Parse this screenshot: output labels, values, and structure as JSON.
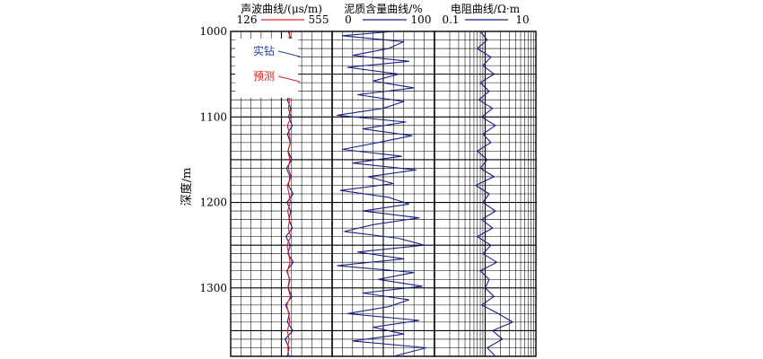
{
  "chart_data": {
    "type": "line",
    "y_axis": {
      "label": "深度/m",
      "range": [
        1000,
        1380
      ],
      "ticks": [
        1000,
        1100,
        1200,
        1300
      ],
      "reversed": true
    },
    "grid": true,
    "tracks": [
      {
        "id": "sonic",
        "title": "声波曲线/(μs/m)",
        "scale_min_label": "126",
        "scale_max_label": "555",
        "range": [
          126,
          555
        ],
        "scale": "linear",
        "legend_color": "#e02020",
        "annotations": [
          {
            "text": "实钻",
            "color": "#2b3fa0"
          },
          {
            "text": "预测",
            "color": "#e02020"
          }
        ],
        "series": [
          {
            "name": "实钻",
            "color": "#1a1f8c",
            "points": [
              [
                1000,
                370
              ],
              [
                1010,
                381
              ],
              [
                1020,
                374
              ],
              [
                1030,
                385
              ],
              [
                1040,
                368
              ],
              [
                1050,
                379
              ],
              [
                1060,
                372
              ],
              [
                1070,
                388
              ],
              [
                1080,
                365
              ],
              [
                1090,
                380
              ],
              [
                1100,
                371
              ],
              [
                1110,
                386
              ],
              [
                1120,
                366
              ],
              [
                1130,
                378
              ],
              [
                1140,
                369
              ],
              [
                1150,
                384
              ],
              [
                1160,
                362
              ],
              [
                1170,
                377
              ],
              [
                1180,
                370
              ],
              [
                1190,
                390
              ],
              [
                1200,
                364
              ],
              [
                1210,
                380
              ],
              [
                1220,
                372
              ],
              [
                1230,
                387
              ],
              [
                1240,
                360
              ],
              [
                1250,
                378
              ],
              [
                1260,
                368
              ],
              [
                1270,
                391
              ],
              [
                1280,
                363
              ],
              [
                1290,
                376
              ],
              [
                1300,
                369
              ],
              [
                1310,
                385
              ],
              [
                1320,
                358
              ],
              [
                1330,
                374
              ],
              [
                1340,
                366
              ],
              [
                1350,
                389
              ],
              [
                1360,
                356
              ],
              [
                1370,
                373
              ],
              [
                1380,
                365
              ]
            ]
          },
          {
            "name": "预测",
            "color": "#e02020",
            "points": [
              [
                1000,
                376
              ],
              [
                1010,
                372
              ],
              [
                1020,
                380
              ],
              [
                1030,
                369
              ],
              [
                1040,
                377
              ],
              [
                1050,
                371
              ],
              [
                1060,
                383
              ],
              [
                1070,
                367
              ],
              [
                1080,
                375
              ],
              [
                1090,
                370
              ],
              [
                1100,
                381
              ],
              [
                1110,
                366
              ],
              [
                1120,
                374
              ],
              [
                1130,
                379
              ],
              [
                1140,
                368
              ],
              [
                1150,
                376
              ],
              [
                1160,
                370
              ],
              [
                1170,
                382
              ],
              [
                1180,
                365
              ],
              [
                1190,
                373
              ],
              [
                1200,
                378
              ],
              [
                1210,
                367
              ],
              [
                1220,
                375
              ],
              [
                1230,
                369
              ],
              [
                1240,
                380
              ],
              [
                1250,
                364
              ],
              [
                1260,
                372
              ],
              [
                1270,
                377
              ],
              [
                1280,
                366
              ],
              [
                1290,
                374
              ],
              [
                1300,
                368
              ],
              [
                1310,
                379
              ],
              [
                1320,
                363
              ],
              [
                1330,
                371
              ],
              [
                1340,
                376
              ],
              [
                1350,
                365
              ],
              [
                1360,
                373
              ],
              [
                1370,
                367
              ],
              [
                1380,
                372
              ]
            ]
          }
        ]
      },
      {
        "id": "shale",
        "title": "泥质含量曲线/%",
        "scale_min_label": "0",
        "scale_max_label": "100",
        "range": [
          0,
          100
        ],
        "scale": "linear",
        "legend_color": "#1a1f8c",
        "series": [
          {
            "name": "",
            "color": "#1a1f8c",
            "points": [
              [
                1000,
                60
              ],
              [
                1005,
                10
              ],
              [
                1012,
                70
              ],
              [
                1020,
                55
              ],
              [
                1028,
                20
              ],
              [
                1035,
                75
              ],
              [
                1042,
                15
              ],
              [
                1050,
                65
              ],
              [
                1058,
                40
              ],
              [
                1066,
                80
              ],
              [
                1074,
                25
              ],
              [
                1082,
                70
              ],
              [
                1090,
                50
              ],
              [
                1098,
                5
              ],
              [
                1106,
                72
              ],
              [
                1114,
                30
              ],
              [
                1122,
                78
              ],
              [
                1130,
                45
              ],
              [
                1138,
                10
              ],
              [
                1146,
                68
              ],
              [
                1154,
                20
              ],
              [
                1162,
                82
              ],
              [
                1170,
                35
              ],
              [
                1178,
                60
              ],
              [
                1186,
                8
              ],
              [
                1194,
                55
              ],
              [
                1202,
                75
              ],
              [
                1210,
                30
              ],
              [
                1218,
                85
              ],
              [
                1226,
                40
              ],
              [
                1234,
                12
              ],
              [
                1242,
                65
              ],
              [
                1250,
                90
              ],
              [
                1258,
                25
              ],
              [
                1266,
                70
              ],
              [
                1274,
                5
              ],
              [
                1282,
                80
              ],
              [
                1290,
                45
              ],
              [
                1298,
                88
              ],
              [
                1306,
                30
              ],
              [
                1314,
                75
              ],
              [
                1322,
                55
              ],
              [
                1330,
                15
              ],
              [
                1338,
                85
              ],
              [
                1346,
                40
              ],
              [
                1354,
                70
              ],
              [
                1362,
                20
              ],
              [
                1370,
                92
              ],
              [
                1380,
                60
              ]
            ]
          }
        ]
      },
      {
        "id": "resistivity",
        "title": "电阻曲线/Ω·m",
        "scale_min_label": "0.1",
        "scale_max_label": "10",
        "range": [
          0.1,
          10
        ],
        "scale": "log",
        "legend_color": "#1a1f8c",
        "series": [
          {
            "name": "",
            "color": "#1a1f8c",
            "points": [
              [
                1000,
                0.8
              ],
              [
                1010,
                1.1
              ],
              [
                1020,
                0.7
              ],
              [
                1030,
                1.3
              ],
              [
                1040,
                0.9
              ],
              [
                1050,
                1.5
              ],
              [
                1060,
                0.8
              ],
              [
                1070,
                1.2
              ],
              [
                1080,
                0.75
              ],
              [
                1090,
                1.4
              ],
              [
                1100,
                0.85
              ],
              [
                1110,
                1.6
              ],
              [
                1120,
                0.9
              ],
              [
                1130,
                1.3
              ],
              [
                1140,
                0.7
              ],
              [
                1150,
                1.1
              ],
              [
                1160,
                0.8
              ],
              [
                1170,
                1.5
              ],
              [
                1180,
                0.65
              ],
              [
                1190,
                1.2
              ],
              [
                1200,
                0.9
              ],
              [
                1210,
                1.6
              ],
              [
                1220,
                0.85
              ],
              [
                1230,
                1.4
              ],
              [
                1240,
                0.7
              ],
              [
                1250,
                1.3
              ],
              [
                1260,
                0.9
              ],
              [
                1270,
                1.7
              ],
              [
                1280,
                0.8
              ],
              [
                1290,
                1.2
              ],
              [
                1300,
                1.0
              ],
              [
                1310,
                1.5
              ],
              [
                1320,
                0.85
              ],
              [
                1330,
                1.8
              ],
              [
                1340,
                3.5
              ],
              [
                1350,
                1.4
              ],
              [
                1360,
                2.2
              ],
              [
                1370,
                1.1
              ],
              [
                1380,
                1.6
              ]
            ]
          }
        ]
      }
    ]
  }
}
